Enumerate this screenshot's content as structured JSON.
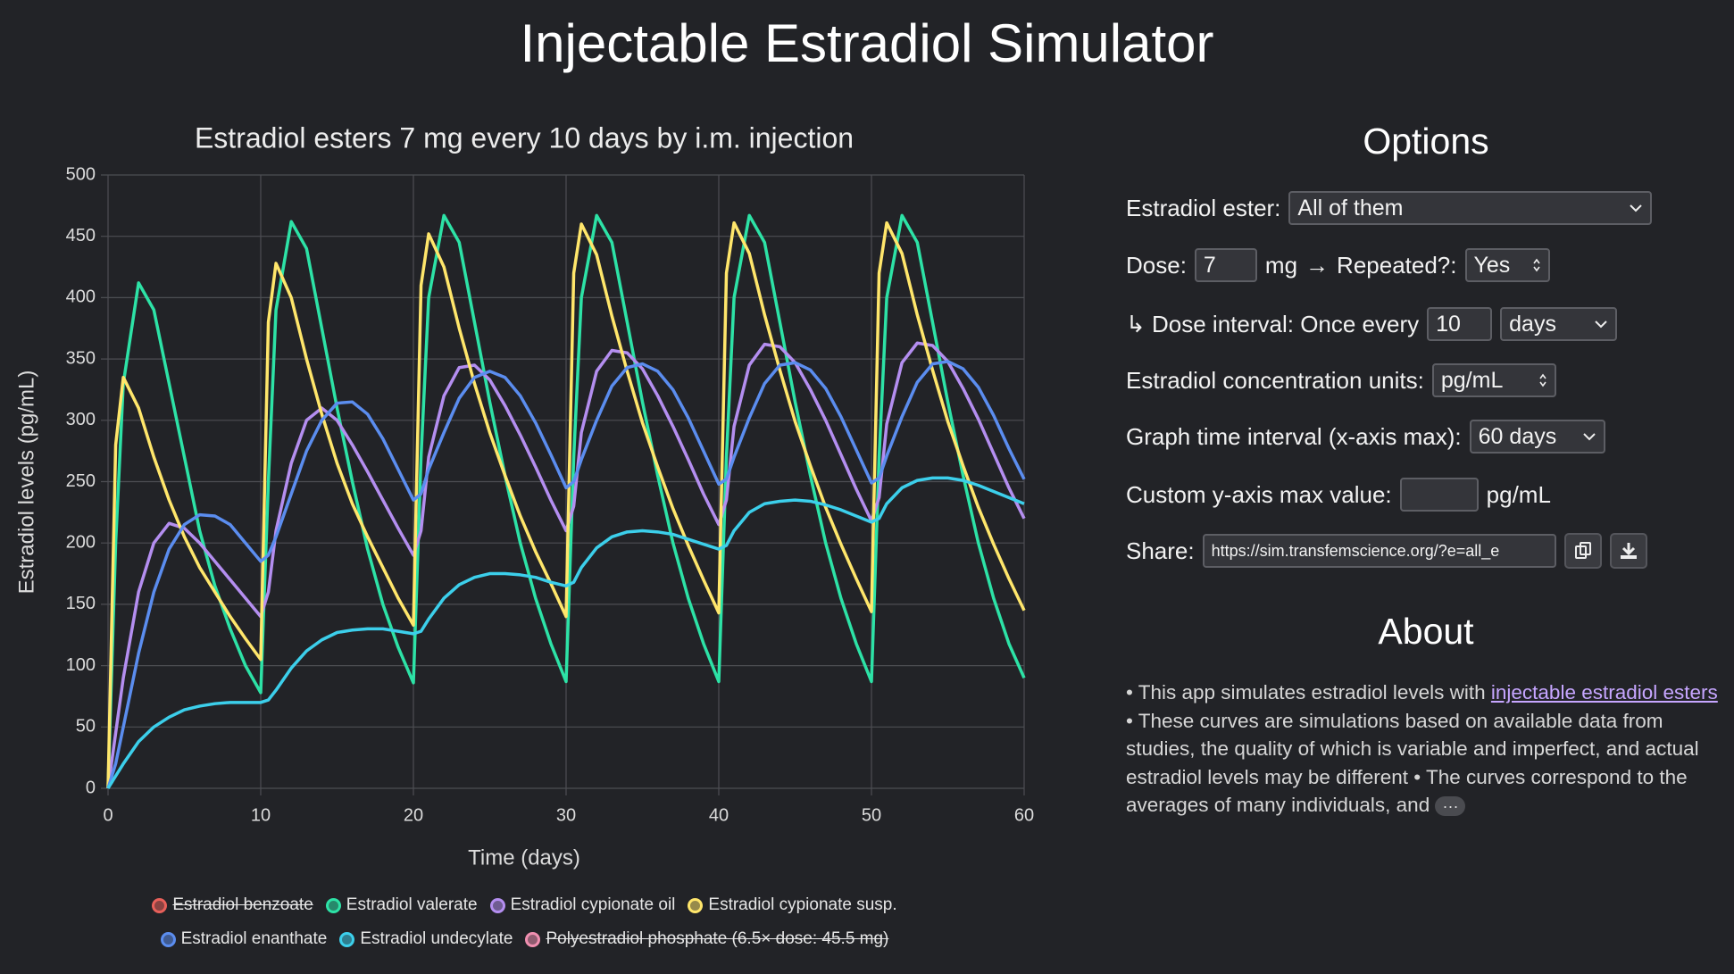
{
  "header": {
    "title": "Injectable Estradiol Simulator"
  },
  "chart_data": {
    "type": "line",
    "title": "Estradiol esters 7 mg every 10 days by i.m. injection",
    "x_label": "Time (days)",
    "y_label": "Estradiol levels (pg/mL)",
    "x": [
      0,
      0.5,
      1,
      2,
      3,
      4,
      5,
      6,
      7,
      8,
      9,
      10,
      10.5,
      11,
      12,
      13,
      14,
      15,
      16,
      17,
      18,
      19,
      20,
      20.5,
      21,
      22,
      23,
      24,
      25,
      26,
      27,
      28,
      29,
      30,
      30.5,
      31,
      32,
      33,
      34,
      35,
      36,
      37,
      38,
      39,
      40,
      40.5,
      41,
      42,
      43,
      44,
      45,
      46,
      47,
      48,
      49,
      50,
      50.5,
      51,
      52,
      53,
      54,
      55,
      56,
      57,
      58,
      59,
      60
    ],
    "xlim": [
      0,
      60
    ],
    "xticks": [
      0,
      10,
      20,
      30,
      40,
      50,
      60
    ],
    "ylim": [
      0,
      500
    ],
    "yticks": [
      0,
      50,
      100,
      150,
      200,
      250,
      300,
      350,
      400,
      450,
      500
    ],
    "grid": true,
    "series": [
      {
        "name": "Estradiol benzoate",
        "color": "#e8605a",
        "hidden": true
      },
      {
        "name": "Estradiol valerate",
        "color": "#2de2a6",
        "values": [
          0,
          200,
          330,
          412,
          390,
          330,
          270,
          210,
          165,
          130,
          100,
          78,
          250,
          390,
          462,
          440,
          375,
          310,
          250,
          195,
          150,
          115,
          86,
          270,
          400,
          467,
          445,
          380,
          315,
          255,
          200,
          155,
          118,
          87,
          270,
          400,
          467,
          445,
          380,
          315,
          255,
          200,
          155,
          118,
          87,
          270,
          400,
          467,
          445,
          380,
          315,
          255,
          200,
          155,
          118,
          87,
          270,
          400,
          467,
          445,
          380,
          315,
          255,
          200,
          155,
          118,
          90
        ]
      },
      {
        "name": "Estradiol cypionate oil",
        "color": "#b48ef0",
        "values": [
          0,
          45,
          90,
          160,
          200,
          216,
          212,
          200,
          185,
          170,
          155,
          140,
          160,
          210,
          265,
          300,
          310,
          300,
          280,
          258,
          235,
          212,
          190,
          210,
          270,
          320,
          343,
          345,
          333,
          312,
          288,
          262,
          235,
          210,
          230,
          290,
          340,
          357,
          355,
          342,
          320,
          295,
          268,
          240,
          215,
          235,
          295,
          345,
          362,
          360,
          347,
          325,
          300,
          272,
          244,
          218,
          237,
          297,
          347,
          363,
          361,
          348,
          326,
          301,
          273,
          245,
          220
        ]
      },
      {
        "name": "Estradiol cypionate susp.",
        "color": "#ffe66b",
        "values": [
          0,
          280,
          335,
          310,
          270,
          235,
          205,
          180,
          160,
          140,
          122,
          105,
          380,
          428,
          400,
          350,
          305,
          265,
          232,
          205,
          180,
          155,
          133,
          410,
          452,
          425,
          375,
          330,
          290,
          255,
          222,
          193,
          167,
          140,
          420,
          460,
          435,
          385,
          340,
          298,
          262,
          228,
          198,
          170,
          143,
          420,
          461,
          436,
          386,
          341,
          299,
          263,
          229,
          199,
          171,
          144,
          420,
          461,
          436,
          386,
          341,
          299,
          263,
          229,
          199,
          171,
          145
        ]
      },
      {
        "name": "Estradiol enanthate",
        "color": "#5b8def",
        "values": [
          0,
          20,
          50,
          110,
          160,
          195,
          215,
          223,
          222,
          215,
          200,
          185,
          190,
          205,
          240,
          275,
          300,
          314,
          315,
          305,
          285,
          260,
          235,
          240,
          260,
          290,
          318,
          335,
          340,
          335,
          320,
          298,
          272,
          245,
          250,
          268,
          300,
          328,
          343,
          346,
          340,
          325,
          302,
          275,
          248,
          252,
          270,
          302,
          330,
          345,
          347,
          341,
          326,
          303,
          276,
          249,
          253,
          271,
          303,
          331,
          346,
          348,
          342,
          327,
          304,
          277,
          252
        ]
      },
      {
        "name": "Estradiol undecylate",
        "color": "#3ccfeb",
        "values": [
          0,
          10,
          20,
          38,
          50,
          58,
          64,
          67,
          69,
          70,
          70,
          70,
          72,
          80,
          98,
          112,
          121,
          127,
          129,
          130,
          130,
          128,
          126,
          128,
          138,
          155,
          166,
          172,
          175,
          175,
          174,
          172,
          168,
          165,
          168,
          180,
          196,
          205,
          209,
          210,
          209,
          207,
          203,
          199,
          195,
          198,
          210,
          225,
          232,
          234,
          235,
          234,
          231,
          227,
          222,
          217,
          220,
          232,
          245,
          251,
          253,
          253,
          251,
          247,
          242,
          237,
          232
        ]
      },
      {
        "name": "Polyestradiol phosphate (6.5× dose: 45.5 mg)",
        "color": "#f08fb0",
        "hidden": true
      }
    ]
  },
  "options": {
    "title": "Options",
    "ester_label": "Estradiol ester:",
    "ester_value": "All of them",
    "dose_label": "Dose:",
    "dose_value": "7",
    "dose_unit": "mg",
    "arrow": "→",
    "repeated_label": "Repeated?:",
    "repeated_value": "Yes",
    "interval_label": "↳ Dose interval: Once every",
    "interval_value": "10",
    "interval_unit": "days",
    "units_label": "Estradiol concentration units:",
    "units_value": "pg/mL",
    "graph_label": "Graph time interval (x-axis max):",
    "graph_value": "60 days",
    "ymax_label": "Custom y-axis max value:",
    "ymax_unit": "pg/mL",
    "share_label": "Share:",
    "share_value": "https://sim.transfemscience.org/?e=all_e"
  },
  "about": {
    "title": "About",
    "text_before": "• This app simulates estradiol levels with ",
    "link": "injectable estradiol esters",
    "text_after": " • These curves are simulations based on available data from studies, the quality of which is variable and imperfect, and actual estradiol levels may be different • The curves correspond to the averages of many individuals, and ",
    "more": "···"
  }
}
